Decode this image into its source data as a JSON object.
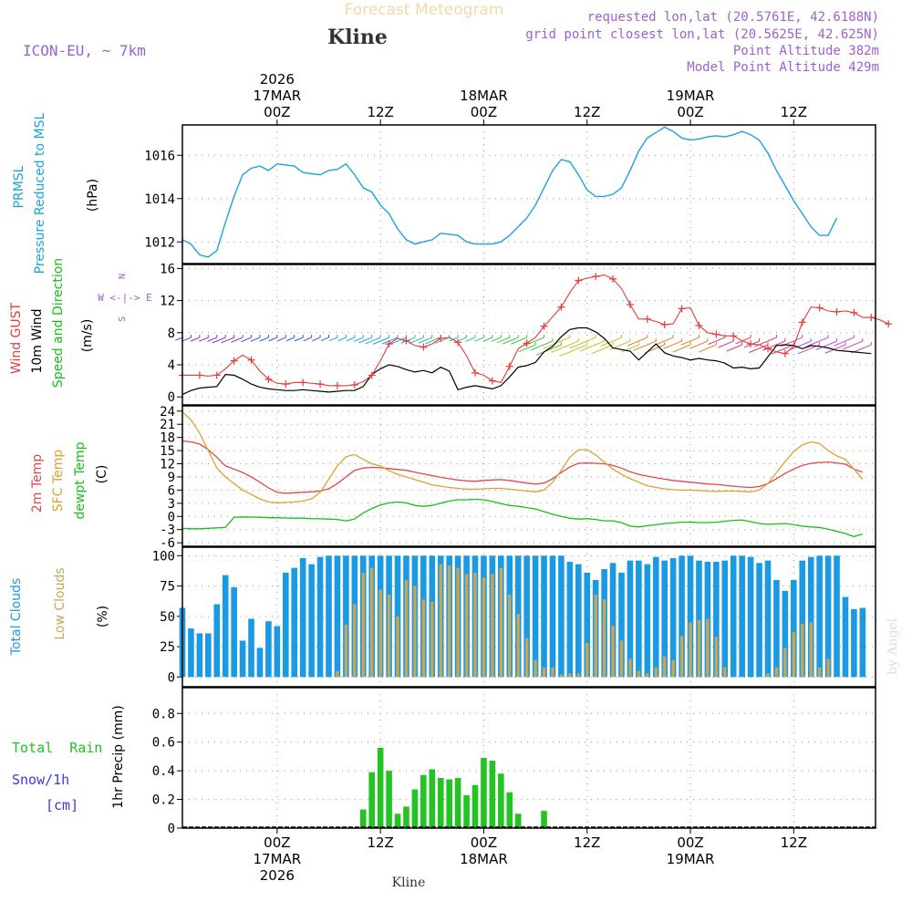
{
  "header": {
    "title": "Forecast Meteogram",
    "location": "Kline",
    "model": "ICON-EU, ~ 7km",
    "requested": "requested lon,lat (20.5761E, 42.6188N)",
    "grid_point": "grid point closest lon,lat (20.5625E, 42.625N)",
    "point_alt": "Point Altitude 382m",
    "model_alt": "Model Point Altitude 429m",
    "watermark": "by Angel",
    "footer_location": "Kline"
  },
  "colors": {
    "pressure": "#1aa3e0",
    "gust": "#e83a3a",
    "wind": "#000000",
    "temp": "#e04848",
    "sfc_temp": "#e0a030",
    "dewpt": "#18c018",
    "total_clouds": "#1b9ae4",
    "low_clouds": "#c9a556",
    "rain": "#22c322",
    "snow": "#3a3ae0",
    "purple": "#a060d0"
  },
  "time_axis": {
    "top_labels": [
      {
        "h": 0,
        "lines": [
          "2026",
          "17MAR",
          "00Z"
        ]
      },
      {
        "h": 12,
        "lines": [
          "12Z"
        ]
      },
      {
        "h": 24,
        "lines": [
          "18MAR",
          "00Z"
        ]
      },
      {
        "h": 36,
        "lines": [
          "12Z"
        ]
      },
      {
        "h": 48,
        "lines": [
          "19MAR",
          "00Z"
        ]
      },
      {
        "h": 60,
        "lines": [
          "12Z"
        ]
      }
    ],
    "bottom_labels": [
      {
        "h": 0,
        "lines": [
          "00Z",
          "17MAR",
          "2026"
        ]
      },
      {
        "h": 12,
        "lines": [
          "12Z"
        ]
      },
      {
        "h": 24,
        "lines": [
          "00Z",
          "18MAR"
        ]
      },
      {
        "h": 36,
        "lines": [
          "12Z"
        ]
      },
      {
        "h": 48,
        "lines": [
          "00Z",
          "19MAR"
        ]
      },
      {
        "h": 60,
        "lines": [
          "12Z"
        ]
      }
    ]
  },
  "chart_data": [
    {
      "type": "line",
      "panel": "pressure",
      "title": "PRMSL Pressure Reduced to MSL",
      "label_lines": [
        "PRMSL",
        "Pressure Reduced to MSL"
      ],
      "ylabel": "(hPa)",
      "x_start": -11,
      "x_step": 1,
      "ylim": [
        1011,
        1017.4
      ],
      "yticks": [
        "1012",
        "1014",
        "1016"
      ],
      "ytick_values": [
        1012,
        1014,
        1016
      ],
      "values": [
        1012.1,
        1011.9,
        1011.4,
        1011.3,
        1011.6,
        1012.9,
        1014.1,
        1015.1,
        1015.4,
        1015.5,
        1015.3,
        1015.6,
        1015.55,
        1015.5,
        1015.2,
        1015.15,
        1015.1,
        1015.3,
        1015.35,
        1015.6,
        1015.1,
        1014.5,
        1014.3,
        1013.7,
        1013.3,
        1012.6,
        1012.1,
        1011.9,
        1012.0,
        1012.1,
        1012.4,
        1012.35,
        1012.3,
        1012.0,
        1011.9,
        1011.9,
        1011.9,
        1012.0,
        1012.3,
        1012.7,
        1013.1,
        1013.7,
        1014.5,
        1015.3,
        1015.8,
        1015.7,
        1015.1,
        1014.4,
        1014.1,
        1014.1,
        1014.2,
        1014.5,
        1015.3,
        1016.2,
        1016.8,
        1017.05,
        1017.3,
        1017.1,
        1016.8,
        1016.7,
        1016.75,
        1016.85,
        1016.9,
        1016.85,
        1016.95,
        1017.1,
        1016.95,
        1016.7,
        1016.1,
        1015.3,
        1014.6,
        1013.9,
        1013.3,
        1012.7,
        1012.3,
        1012.3,
        1013.1
      ]
    },
    {
      "type": "line",
      "panel": "wind",
      "title": "Wind GUST / 10m Wind Speed and Direction",
      "label_lines": [
        "Wind GUST",
        "10m Wind",
        "Speed and Direction"
      ],
      "ylabel": "(m/s)",
      "compass": [
        "N",
        "W <-|-> E",
        "S"
      ],
      "x_start": -11,
      "x_step": 1,
      "ylim": [
        -1,
        16.5
      ],
      "yticks": [
        "0",
        "4",
        "8",
        "12",
        "16"
      ],
      "ytick_values": [
        0,
        4,
        8,
        12,
        16
      ],
      "series": [
        {
          "name": "Wind GUST",
          "values": [
            2.7,
            2.7,
            2.7,
            2.6,
            2.7,
            3.5,
            4.5,
            5.2,
            4.6,
            3.2,
            2.2,
            1.7,
            1.6,
            1.8,
            1.8,
            1.7,
            1.6,
            1.4,
            1.4,
            1.4,
            1.5,
            1.9,
            2.7,
            4.5,
            6.6,
            7.3,
            7.0,
            6.4,
            6.2,
            6.6,
            7.3,
            7.4,
            6.8,
            5.1,
            3.0,
            2.7,
            2.0,
            1.8,
            3.8,
            6.0,
            6.7,
            7.4,
            8.8,
            10.0,
            11.2,
            13.0,
            14.5,
            14.8,
            15.0,
            15.2,
            14.7,
            13.5,
            11.5,
            9.7,
            9.7,
            9.4,
            9.0,
            9.1,
            11.0,
            11.1,
            8.9,
            8.0,
            7.8,
            7.6,
            7.6,
            7.0,
            6.6,
            6.5,
            6.0,
            5.6,
            5.4,
            6.3,
            9.3,
            11.2,
            11.1,
            10.7,
            10.6,
            10.7,
            10.5,
            9.9,
            9.9,
            9.6,
            9.1
          ]
        },
        {
          "name": "10m Wind",
          "values": [
            0.3,
            0.8,
            1.1,
            1.2,
            1.3,
            2.8,
            2.7,
            2.2,
            1.6,
            1.2,
            1.0,
            0.9,
            0.8,
            0.8,
            0.9,
            0.8,
            0.7,
            0.6,
            0.7,
            0.8,
            0.8,
            1.3,
            2.8,
            3.5,
            4.0,
            3.8,
            3.4,
            3.1,
            3.3,
            3.0,
            3.7,
            3.2,
            0.9,
            1.2,
            1.4,
            1.2,
            1.0,
            1.4,
            2.5,
            3.7,
            3.9,
            4.3,
            5.6,
            6.3,
            7.5,
            8.4,
            8.6,
            8.6,
            8.1,
            7.3,
            6.1,
            5.9,
            5.7,
            4.6,
            5.6,
            6.6,
            5.5,
            5.1,
            4.9,
            4.6,
            4.8,
            4.6,
            4.5,
            4.2,
            3.6,
            3.7,
            3.5,
            3.6,
            5.0,
            6.4,
            6.5,
            6.4,
            6.0,
            6.4,
            6.3,
            6.1,
            5.8,
            5.7,
            5.6,
            5.5,
            5.4
          ]
        }
      ]
    },
    {
      "type": "line",
      "panel": "temperature",
      "title": "2m Temp / SFC Temp / dewpt Temp",
      "label_lines": [
        "2m Temp",
        "SFC Temp",
        "dewpt Temp"
      ],
      "ylabel": "(C)",
      "x_start": -11,
      "x_step": 1,
      "ylim": [
        -6.8,
        25.2
      ],
      "yticks": [
        "-6",
        "-3",
        "0",
        "3",
        "6",
        "9",
        "12",
        "15",
        "18",
        "21",
        "24"
      ],
      "ytick_values": [
        -6,
        -3,
        0,
        3,
        6,
        9,
        12,
        15,
        18,
        21,
        24
      ],
      "series": [
        {
          "name": "2m Temp",
          "values": [
            17.2,
            17.0,
            16.5,
            15.2,
            13.5,
            11.5,
            10.8,
            10.0,
            9.0,
            7.8,
            6.5,
            5.5,
            5.3,
            5.4,
            5.5,
            5.6,
            5.8,
            6.3,
            7.5,
            9.0,
            10.5,
            11.0,
            11.2,
            11.1,
            10.9,
            10.7,
            10.5,
            10.1,
            9.7,
            9.3,
            8.9,
            8.6,
            8.3,
            8.1,
            8.0,
            8.2,
            8.3,
            8.4,
            8.2,
            7.9,
            7.6,
            7.4,
            7.6,
            8.6,
            10.0,
            11.3,
            12.1,
            12.2,
            12.1,
            12.0,
            11.6,
            11.0,
            10.2,
            9.6,
            9.2,
            8.8,
            8.5,
            8.2,
            8.0,
            7.8,
            7.6,
            7.4,
            7.3,
            7.1,
            6.9,
            6.7,
            6.6,
            6.8,
            7.5,
            8.6,
            9.8,
            10.8,
            11.6,
            12.1,
            12.3,
            12.4,
            12.2,
            11.9,
            10.8,
            10.1
          ]
        },
        {
          "name": "SFC Temp",
          "values": [
            23.8,
            22.0,
            19.0,
            15.0,
            11.0,
            9.0,
            7.5,
            6.0,
            5.0,
            4.0,
            3.3,
            3.1,
            3.2,
            3.3,
            3.5,
            4.0,
            5.5,
            8.5,
            11.5,
            13.6,
            14.1,
            13.0,
            12.0,
            11.5,
            10.4,
            9.6,
            9.0,
            8.4,
            7.8,
            7.2,
            6.9,
            6.6,
            6.4,
            6.2,
            6.2,
            6.3,
            6.4,
            6.4,
            6.2,
            6.0,
            5.8,
            5.6,
            6.0,
            7.8,
            10.5,
            13.5,
            15.2,
            15.2,
            14.0,
            12.4,
            10.8,
            9.6,
            8.6,
            7.8,
            7.0,
            6.6,
            6.3,
            6.1,
            6.0,
            6.0,
            5.9,
            5.8,
            5.7,
            5.8,
            5.8,
            5.7,
            5.6,
            6.0,
            7.5,
            10.0,
            12.5,
            14.8,
            16.3,
            17.0,
            16.6,
            15.0,
            13.8,
            13.0,
            10.8,
            8.5
          ]
        },
        {
          "name": "dewpt Temp",
          "values": [
            -2.7,
            -2.8,
            -2.8,
            -2.7,
            -2.6,
            -2.5,
            -0.2,
            -0.1,
            -0.15,
            -0.2,
            -0.3,
            -0.3,
            -0.35,
            -0.4,
            -0.4,
            -0.5,
            -0.55,
            -0.6,
            -0.7,
            -1.0,
            -0.6,
            0.8,
            1.8,
            2.6,
            3.1,
            3.3,
            3.1,
            2.5,
            2.3,
            2.5,
            3.0,
            3.5,
            3.8,
            3.8,
            3.9,
            3.8,
            3.4,
            2.9,
            2.5,
            2.3,
            2.0,
            1.7,
            1.1,
            0.5,
            0.0,
            -0.4,
            -0.6,
            -0.5,
            -0.7,
            -1.0,
            -1.0,
            -1.4,
            -2.2,
            -2.4,
            -2.1,
            -1.9,
            -1.6,
            -1.5,
            -1.3,
            -1.3,
            -1.4,
            -1.4,
            -1.3,
            -1.1,
            -0.9,
            -0.8,
            -1.2,
            -1.6,
            -1.8,
            -1.7,
            -1.6,
            -1.9,
            -2.2,
            -2.4,
            -2.5,
            -2.9,
            -3.4,
            -3.9,
            -4.6,
            -4.0
          ]
        }
      ]
    },
    {
      "type": "bar",
      "panel": "clouds",
      "title": "Total Clouds / Low Clouds",
      "label_lines": [
        "Total Clouds",
        "Low Clouds"
      ],
      "ylabel": "(%)",
      "x_start": -11,
      "x_step": 1,
      "ylim": [
        -8,
        107
      ],
      "yticks": [
        "0",
        "25",
        "50",
        "75",
        "100"
      ],
      "ytick_values": [
        0,
        25,
        50,
        75,
        100
      ],
      "series": [
        {
          "name": "Total Clouds",
          "values": [
            57,
            40,
            36,
            36,
            60,
            84,
            74,
            30,
            48,
            24,
            46,
            42,
            86,
            90,
            98,
            93,
            99,
            100,
            100,
            100,
            100,
            100,
            100,
            100,
            100,
            100,
            100,
            100,
            100,
            100,
            100,
            100,
            100,
            100,
            100,
            100,
            100,
            100,
            100,
            100,
            100,
            100,
            100,
            100,
            100,
            95,
            93,
            86,
            80,
            89,
            94,
            86,
            96,
            96,
            93,
            99,
            96,
            98,
            100,
            100,
            96,
            95,
            95,
            96,
            100,
            100,
            99,
            94,
            96,
            80,
            71,
            80,
            96,
            99,
            100,
            100,
            100,
            66,
            56,
            57
          ]
        },
        {
          "name": "Low Clouds",
          "values": [
            0,
            0,
            0,
            0,
            0,
            0,
            0,
            0,
            0,
            0,
            0,
            0,
            0,
            0,
            0,
            0,
            0,
            0,
            5,
            43,
            60,
            86,
            90,
            72,
            68,
            50,
            80,
            75,
            64,
            62,
            93,
            92,
            90,
            85,
            86,
            82,
            85,
            90,
            68,
            52,
            32,
            14,
            8,
            8,
            2,
            3,
            3,
            28,
            68,
            64,
            42,
            30,
            15,
            5,
            3,
            8,
            17,
            14,
            34,
            45,
            47,
            48,
            33,
            8,
            0,
            0,
            0,
            0,
            3,
            8,
            24,
            37,
            44,
            45,
            8,
            15,
            0,
            0,
            0,
            0
          ]
        }
      ]
    },
    {
      "type": "bar",
      "panel": "precip",
      "title": "1hr Precip (mm)",
      "label_lines": [
        "Total  Rain",
        "Snow/1h",
        "[cm]"
      ],
      "ylabel": "1hr Precip (mm)",
      "x_start": -11,
      "x_step": 1,
      "ylim": [
        0,
        0.98
      ],
      "yticks": [
        "0",
        "0.2",
        "0.4",
        "0.6",
        "0.8"
      ],
      "ytick_values": [
        0,
        0.2,
        0.4,
        0.6,
        0.8
      ],
      "series": [
        {
          "name": "Total Rain",
          "values": [
            0,
            0,
            0,
            0,
            0,
            0,
            0,
            0,
            0,
            0,
            0,
            0,
            0,
            0,
            0,
            0,
            0,
            0,
            0,
            0,
            0,
            0.13,
            0.39,
            0.56,
            0.4,
            0.1,
            0.15,
            0.27,
            0.37,
            0.41,
            0.35,
            0.34,
            0.35,
            0.23,
            0.3,
            0.49,
            0.47,
            0.38,
            0.25,
            0.1,
            0,
            0,
            0.12,
            0,
            0,
            0,
            0,
            0,
            0,
            0,
            0,
            0,
            0,
            0,
            0,
            0,
            0,
            0,
            0,
            0,
            0,
            0,
            0,
            0,
            0,
            0,
            0,
            0,
            0,
            0,
            0,
            0,
            0,
            0,
            0,
            0,
            0,
            0,
            0
          ]
        }
      ]
    }
  ]
}
